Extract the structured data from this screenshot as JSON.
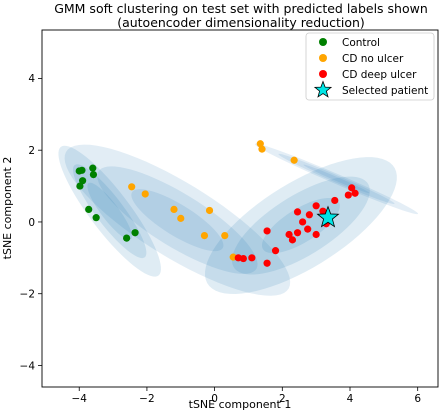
{
  "chart_data": {
    "type": "scatter",
    "title_line1": "GMM soft clustering on test set with predicted labels shown",
    "title_line2": "(autoencoder dimensionality reduction)",
    "xlabel": "tSNE component 1",
    "ylabel": "tSNE component 2",
    "xlim": [
      -5.1,
      6.6
    ],
    "ylim": [
      -4.6,
      5.35
    ],
    "xticks": [
      -4,
      -2,
      0,
      2,
      4,
      6
    ],
    "yticks": [
      -4,
      -2,
      0,
      2,
      4
    ],
    "grid": false,
    "legend_position": "top-right",
    "colors": {
      "control": "#008000",
      "cd_no_ulcer": "#ffa500",
      "cd_deep_ulcer": "#ff0000",
      "selected_patient": "#00e5e5",
      "ellipse_fill": "#1f77b4"
    },
    "series": [
      {
        "name": "Control",
        "color": "#008000",
        "marker": "circle",
        "points": [
          [
            -4.0,
            1.42
          ],
          [
            -3.92,
            1.44
          ],
          [
            -3.6,
            1.5
          ],
          [
            -3.58,
            1.32
          ],
          [
            -3.9,
            1.15
          ],
          [
            -3.98,
            1.0
          ],
          [
            -3.72,
            0.35
          ],
          [
            -3.5,
            0.12
          ],
          [
            -2.6,
            -0.45
          ],
          [
            -2.35,
            -0.3
          ]
        ]
      },
      {
        "name": "CD no ulcer",
        "color": "#ffa500",
        "marker": "circle",
        "points": [
          [
            -2.45,
            0.98
          ],
          [
            -2.05,
            0.78
          ],
          [
            -1.2,
            0.35
          ],
          [
            -1.0,
            0.1
          ],
          [
            -0.3,
            -0.38
          ],
          [
            -0.15,
            0.32
          ],
          [
            0.3,
            -0.38
          ],
          [
            0.55,
            -0.98
          ],
          [
            1.35,
            2.18
          ],
          [
            1.4,
            2.03
          ],
          [
            2.35,
            1.72
          ]
        ]
      },
      {
        "name": "CD deep ulcer",
        "color": "#ff0000",
        "marker": "circle",
        "points": [
          [
            0.7,
            -1.0
          ],
          [
            0.85,
            -1.02
          ],
          [
            1.1,
            -1.0
          ],
          [
            1.55,
            -1.15
          ],
          [
            1.55,
            -0.25
          ],
          [
            1.8,
            -0.8
          ],
          [
            2.2,
            -0.35
          ],
          [
            2.3,
            -0.5
          ],
          [
            2.45,
            -0.3
          ],
          [
            2.45,
            0.28
          ],
          [
            2.6,
            0.0
          ],
          [
            2.75,
            -0.2
          ],
          [
            2.8,
            0.2
          ],
          [
            3.0,
            -0.35
          ],
          [
            3.0,
            0.45
          ],
          [
            3.2,
            0.3
          ],
          [
            3.3,
            -0.05
          ],
          [
            3.55,
            0.6
          ],
          [
            3.95,
            0.75
          ],
          [
            4.05,
            0.95
          ],
          [
            4.15,
            0.8
          ]
        ]
      },
      {
        "name": "Selected patient",
        "color": "#00e5e5",
        "marker": "star",
        "points": [
          [
            3.35,
            0.12
          ]
        ]
      }
    ],
    "ellipses": [
      {
        "cx": -3.1,
        "cy": 0.3,
        "w": 4.6,
        "h": 1.15,
        "angle": -51,
        "opacity": 0.14
      },
      {
        "cx": -3.1,
        "cy": 0.3,
        "w": 3.3,
        "h": 0.8,
        "angle": -51,
        "opacity": 0.14
      },
      {
        "cx": -3.1,
        "cy": 0.3,
        "w": 2.0,
        "h": 0.5,
        "angle": -51,
        "opacity": 0.14
      },
      {
        "cx": -1.1,
        "cy": 0.05,
        "w": 7.6,
        "h": 2.1,
        "angle": -30,
        "opacity": 0.13
      },
      {
        "cx": -1.1,
        "cy": 0.05,
        "w": 5.4,
        "h": 1.5,
        "angle": -30,
        "opacity": 0.13
      },
      {
        "cx": -1.1,
        "cy": 0.05,
        "w": 3.1,
        "h": 0.88,
        "angle": -30,
        "opacity": 0.13
      },
      {
        "cx": 2.55,
        "cy": -0.1,
        "w": 6.4,
        "h": 2.4,
        "angle": 30,
        "opacity": 0.14
      },
      {
        "cx": 2.55,
        "cy": -0.1,
        "w": 4.6,
        "h": 1.7,
        "angle": 30,
        "opacity": 0.14
      },
      {
        "cx": 2.55,
        "cy": -0.1,
        "w": 2.6,
        "h": 0.95,
        "angle": 30,
        "opacity": 0.14
      },
      {
        "cx": 3.6,
        "cy": 1.2,
        "w": 5.2,
        "h": 0.28,
        "angle": -22,
        "opacity": 0.12
      },
      {
        "cx": 3.6,
        "cy": 1.2,
        "w": 3.7,
        "h": 0.2,
        "angle": -22,
        "opacity": 0.12
      },
      {
        "cx": 3.6,
        "cy": 1.2,
        "w": 2.1,
        "h": 0.11,
        "angle": -22,
        "opacity": 0.12
      }
    ]
  }
}
